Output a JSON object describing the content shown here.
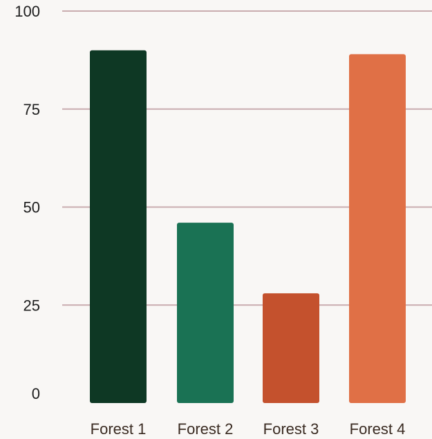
{
  "chart_data": {
    "type": "bar",
    "categories": [
      "Forest 1",
      "Forest 2",
      "Forest 3",
      "Forest 4"
    ],
    "values": [
      90,
      46,
      28,
      89
    ],
    "ylim": [
      0,
      100
    ],
    "yticks": [
      "0",
      "25",
      "50",
      "75",
      "100"
    ],
    "ytick_values": [
      0,
      25,
      50,
      75,
      100
    ],
    "grid": true,
    "colors": [
      "#0e3824",
      "#1a7254",
      "#c4512d",
      "#e07046"
    ]
  }
}
